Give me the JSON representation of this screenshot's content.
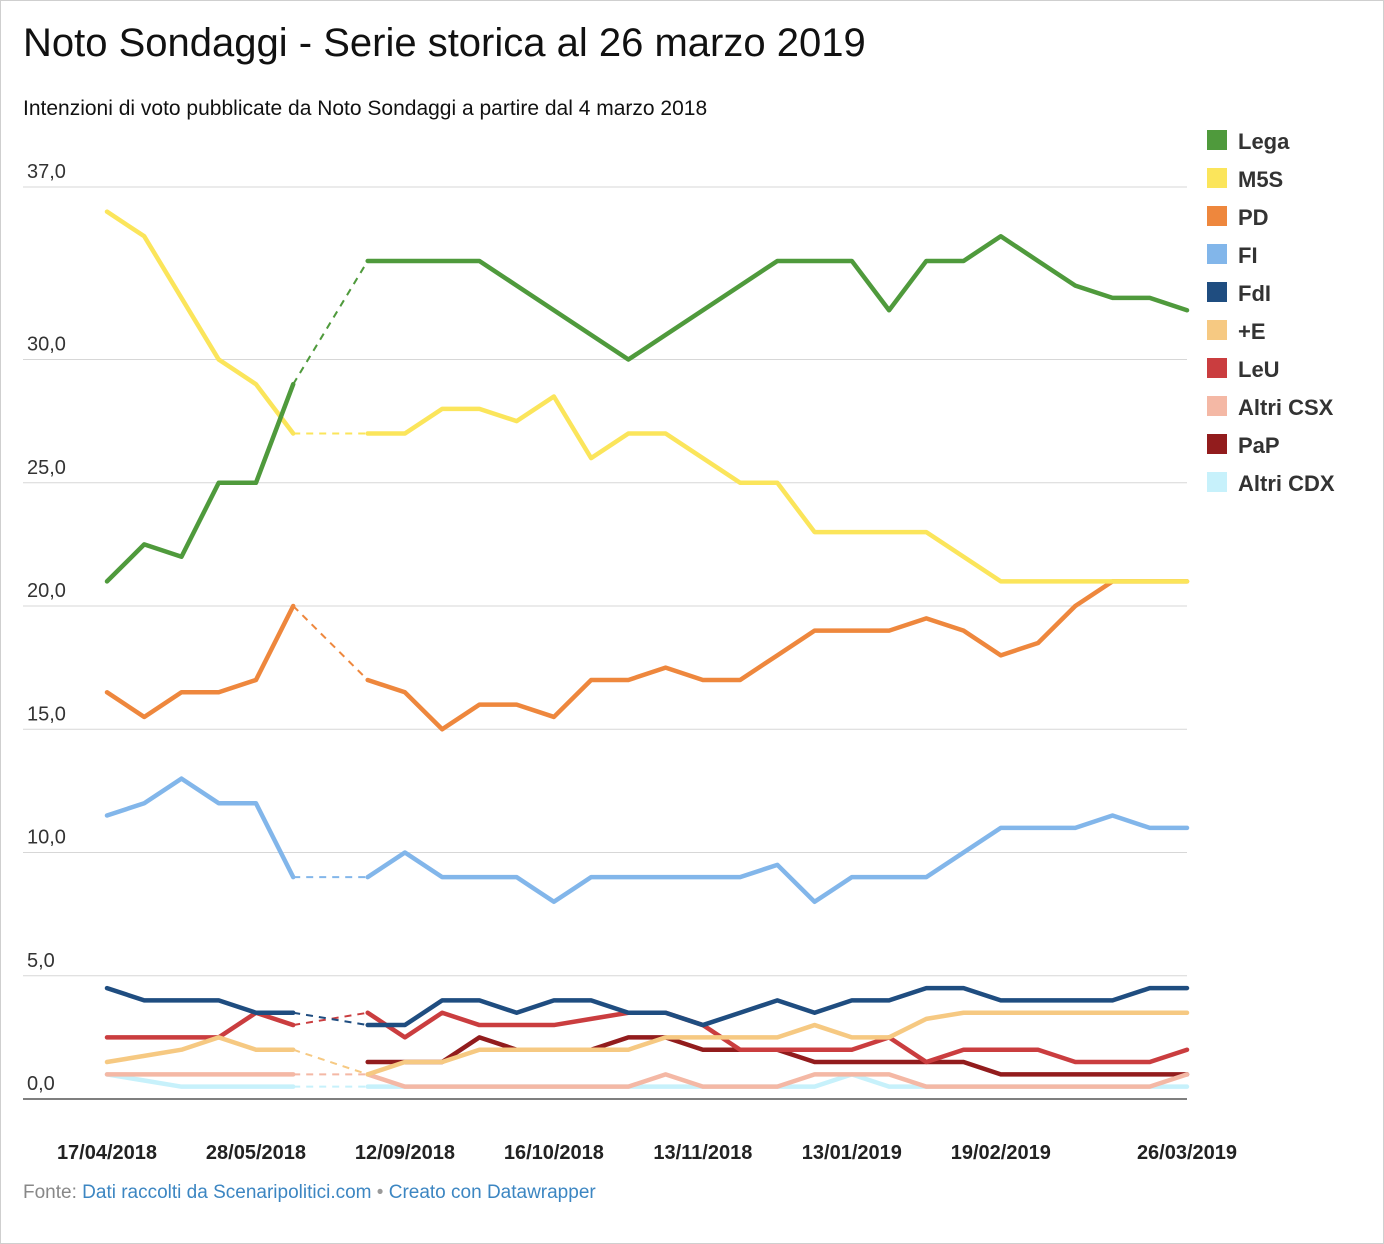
{
  "title": "Noto Sondaggi - Serie storica al 26 marzo 2019",
  "subtitle": "Intenzioni di voto pubblicate da Noto Sondaggi a partire dal 4 marzo 2018",
  "footer": {
    "source_prefix": "Fonte:",
    "source_link": "Dati raccolti da Scenaripolitici.com",
    "separator": "•",
    "made_with": "Creato con Datawrapper"
  },
  "chart_data": {
    "type": "line",
    "ylim": [
      0,
      37
    ],
    "y_ticks": [
      {
        "value": 0,
        "label": "0,0"
      },
      {
        "value": 5,
        "label": "5,0"
      },
      {
        "value": 10,
        "label": "10,0"
      },
      {
        "value": 15,
        "label": "15,0"
      },
      {
        "value": 20,
        "label": "20,0"
      },
      {
        "value": 25,
        "label": "25,0"
      },
      {
        "value": 30,
        "label": "30,0"
      },
      {
        "value": 37,
        "label": "37,0"
      }
    ],
    "x_tick_labels": [
      {
        "index": 0,
        "label": "17/04/2018"
      },
      {
        "index": 4,
        "label": "28/05/2018"
      },
      {
        "index": 8,
        "label": "12/09/2018"
      },
      {
        "index": 12,
        "label": "16/10/2018"
      },
      {
        "index": 16,
        "label": "13/11/2018"
      },
      {
        "index": 20,
        "label": "13/01/2019"
      },
      {
        "index": 24,
        "label": "19/02/2019"
      },
      {
        "index": 29,
        "label": "26/03/2019"
      }
    ],
    "point_count": 30,
    "legend_position": "right",
    "grid": true,
    "series": [
      {
        "name": "Lega",
        "color": "#4f9a3c",
        "values": [
          21,
          22.5,
          22,
          25,
          25,
          29,
          null,
          34,
          34,
          34,
          34,
          33,
          32,
          31,
          30,
          31,
          32,
          33,
          34,
          34,
          34,
          32,
          34,
          34,
          35,
          34,
          33,
          32.5,
          32.5,
          32
        ]
      },
      {
        "name": "M5S",
        "color": "#fbe55b",
        "values": [
          36,
          35,
          32.5,
          30,
          29,
          27,
          null,
          27,
          27,
          28,
          28,
          27.5,
          28.5,
          26,
          27,
          27,
          26,
          25,
          25,
          23,
          23,
          23,
          23,
          22,
          21,
          21,
          21,
          21,
          21,
          21
        ]
      },
      {
        "name": "PD",
        "color": "#ee873d",
        "values": [
          16.5,
          15.5,
          16.5,
          16.5,
          17,
          20,
          null,
          17,
          16.5,
          15,
          16,
          16,
          15.5,
          17,
          17,
          17.5,
          17,
          17,
          18,
          19,
          19,
          19,
          19.5,
          19,
          18,
          18.5,
          20,
          21,
          21,
          21
        ]
      },
      {
        "name": "FI",
        "color": "#82b6ea",
        "values": [
          11.5,
          12,
          13,
          12,
          12,
          9,
          null,
          9,
          10,
          9,
          9,
          9,
          8,
          9,
          9,
          9,
          9,
          9,
          9.5,
          8,
          9,
          9,
          9,
          10,
          11,
          11,
          11,
          11.5,
          11,
          11
        ]
      },
      {
        "name": "FdI",
        "color": "#1f4d80",
        "values": [
          4.5,
          4,
          4,
          4,
          3.5,
          3.5,
          null,
          3,
          3,
          4,
          4,
          3.5,
          4,
          4,
          3.5,
          3.5,
          3,
          3.5,
          4,
          3.5,
          4,
          4,
          4.5,
          4.5,
          4,
          4,
          4,
          4,
          4.5,
          4.5
        ]
      },
      {
        "name": "+E",
        "color": "#f6c982",
        "values": [
          1.5,
          1.75,
          2,
          2.5,
          2,
          2,
          null,
          1,
          1.5,
          1.5,
          2,
          2,
          2,
          2,
          2,
          2.5,
          2.5,
          2.5,
          2.5,
          3,
          2.5,
          2.5,
          3.25,
          3.5,
          3.5,
          3.5,
          3.5,
          3.5,
          3.5,
          3.5
        ]
      },
      {
        "name": "LeU",
        "color": "#ca3d3f",
        "values": [
          2.5,
          2.5,
          2.5,
          2.5,
          3.5,
          3,
          null,
          3.5,
          2.5,
          3.5,
          3,
          3,
          3,
          3.25,
          3.5,
          3.5,
          3,
          2,
          2,
          2,
          2,
          2.5,
          1.5,
          2,
          2,
          2,
          1.5,
          1.5,
          1.5,
          2
        ]
      },
      {
        "name": "Altri CSX",
        "color": "#f4b8a5",
        "values": [
          1,
          1,
          1,
          1,
          1,
          1,
          null,
          1,
          0.5,
          0.5,
          0.5,
          0.5,
          0.5,
          0.5,
          0.5,
          1,
          0.5,
          0.5,
          0.5,
          1,
          1,
          1,
          0.5,
          0.5,
          0.5,
          0.5,
          0.5,
          0.5,
          0.5,
          1
        ]
      },
      {
        "name": "PaP",
        "color": "#921c1d",
        "values": [
          null,
          null,
          null,
          null,
          null,
          null,
          null,
          1.5,
          1.5,
          1.5,
          2.5,
          2,
          2,
          2,
          2.5,
          2.5,
          2,
          2,
          2,
          1.5,
          1.5,
          1.5,
          1.5,
          1.5,
          1,
          1,
          1,
          1,
          1,
          1
        ]
      },
      {
        "name": "Altri CDX",
        "color": "#c7f1fb",
        "values": [
          1,
          0.75,
          0.5,
          0.5,
          0.5,
          0.5,
          null,
          0.5,
          0.5,
          0.5,
          0.5,
          0.5,
          0.5,
          0.5,
          0.5,
          0.5,
          0.5,
          0.5,
          0.5,
          0.5,
          1,
          0.5,
          0.5,
          0.5,
          0.5,
          0.5,
          0.5,
          0.5,
          0.5,
          0.5
        ]
      }
    ]
  }
}
